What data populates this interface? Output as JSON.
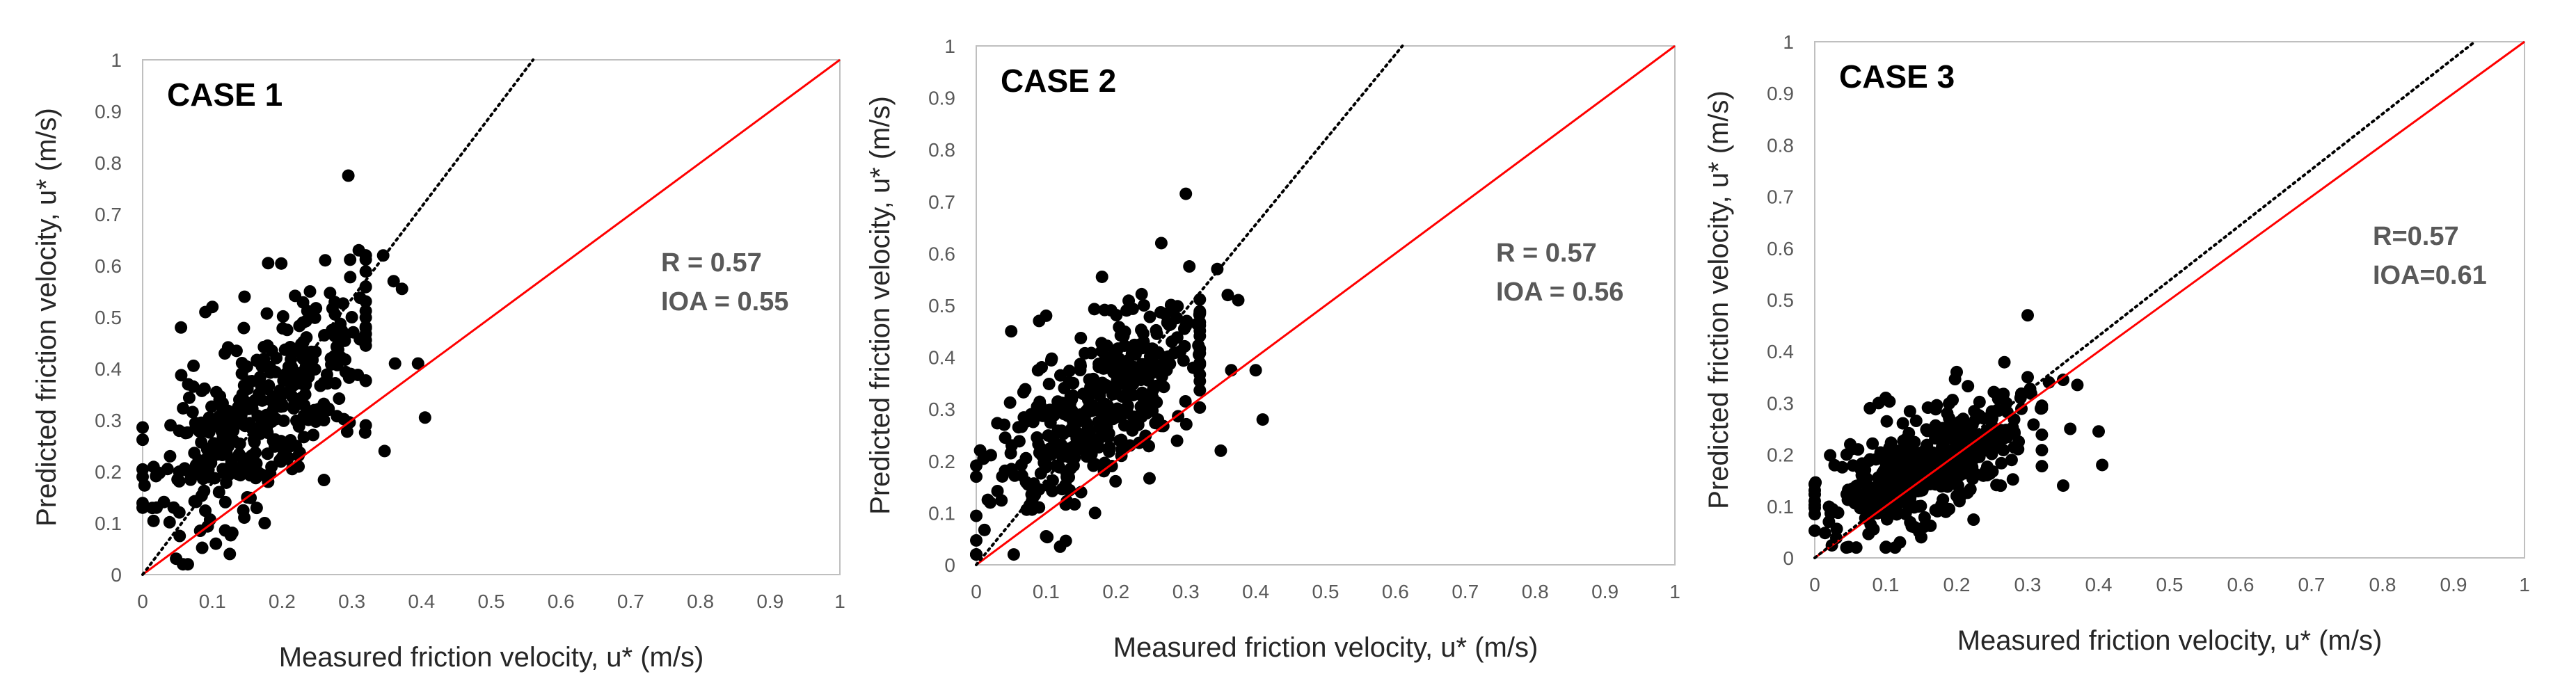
{
  "figure": {
    "background": "#ffffff",
    "point_color": "#000000",
    "one_to_one_color": "#ff0000",
    "regression_color": "#000000"
  },
  "chart_data": [
    {
      "type": "scatter",
      "title": "CASE 1",
      "xlabel": "Measured friction velocity, u* (m/s)",
      "ylabel": "Predicted friction velocity, u* (m/s)",
      "xlim": [
        0,
        1
      ],
      "ylim": [
        0,
        1
      ],
      "xticks": [
        "0",
        "0.1",
        "0.2",
        "0.3",
        "0.4",
        "0.5",
        "0.6",
        "0.7",
        "0.8",
        "0.9",
        "1"
      ],
      "yticks": [
        "0",
        "0.1",
        "0.2",
        "0.3",
        "0.4",
        "0.5",
        "0.6",
        "0.7",
        "0.8",
        "0.9",
        "1"
      ],
      "stats": [
        "R = 0.57",
        "IOA = 0.55"
      ],
      "one_to_one_line": [
        [
          0,
          0
        ],
        [
          1,
          1
        ]
      ],
      "regression_line": [
        [
          0,
          0
        ],
        [
          0.56,
          1.0
        ]
      ],
      "cluster": {
        "cx": 0.17,
        "cy": 0.31,
        "sx": 0.075,
        "slope": 1.0,
        "sres": 0.085,
        "n": 380,
        "seed": 11
      },
      "points": [
        [
          0.295,
          0.775
        ],
        [
          0.31,
          0.63
        ],
        [
          0.345,
          0.62
        ],
        [
          0.36,
          0.57
        ],
        [
          0.372,
          0.555
        ],
        [
          0.362,
          0.41
        ],
        [
          0.395,
          0.41
        ],
        [
          0.405,
          0.305
        ],
        [
          0.347,
          0.24
        ],
        [
          0.18,
          0.605
        ],
        [
          0.175,
          0.1
        ],
        [
          0.1,
          0.52
        ],
        [
          0.09,
          0.51
        ],
        [
          0.055,
          0.48
        ],
        [
          0.125,
          0.04
        ],
        [
          0.105,
          0.06
        ],
        [
          0.0,
          0.19
        ],
        [
          0.02,
          0.13
        ],
        [
          0.04,
          0.29
        ],
        [
          0.3,
          0.5
        ],
        [
          0.28,
          0.46
        ],
        [
          0.27,
          0.42
        ],
        [
          0.24,
          0.55
        ],
        [
          0.26,
          0.3
        ],
        [
          0.22,
          0.25
        ],
        [
          0.15,
          0.15
        ],
        [
          0.2,
          0.35
        ]
      ]
    },
    {
      "type": "scatter",
      "title": "CASE 2",
      "xlabel": "Measured friction velocity, u* (m/s)",
      "ylabel": "Predicted friction velocity, u* (m/s)",
      "xlim": [
        0,
        1
      ],
      "ylim": [
        0,
        1
      ],
      "xticks": [
        "0",
        "0.1",
        "0.2",
        "0.3",
        "0.4",
        "0.5",
        "0.6",
        "0.7",
        "0.8",
        "0.9",
        "1"
      ],
      "yticks": [
        "0",
        "0.1",
        "0.2",
        "0.3",
        "0.4",
        "0.5",
        "0.6",
        "0.7",
        "0.8",
        "0.9",
        "1"
      ],
      "stats": [
        "R = 0.57",
        "IOA = 0.56"
      ],
      "one_to_one_line": [
        [
          0,
          0
        ],
        [
          1,
          1
        ]
      ],
      "regression_line": [
        [
          0,
          0
        ],
        [
          0.61,
          1.0
        ]
      ],
      "cluster": {
        "cx": 0.17,
        "cy": 0.29,
        "sx": 0.075,
        "slope": 0.95,
        "sres": 0.08,
        "n": 380,
        "seed": 23
      },
      "points": [
        [
          0.3,
          0.715
        ],
        [
          0.305,
          0.575
        ],
        [
          0.345,
          0.57
        ],
        [
          0.36,
          0.52
        ],
        [
          0.375,
          0.51
        ],
        [
          0.365,
          0.375
        ],
        [
          0.4,
          0.375
        ],
        [
          0.41,
          0.28
        ],
        [
          0.35,
          0.22
        ],
        [
          0.18,
          0.555
        ],
        [
          0.17,
          0.1
        ],
        [
          0.1,
          0.48
        ],
        [
          0.09,
          0.47
        ],
        [
          0.05,
          0.45
        ],
        [
          0.12,
          0.035
        ],
        [
          0.1,
          0.055
        ],
        [
          0.0,
          0.17
        ],
        [
          0.02,
          0.12
        ],
        [
          0.04,
          0.27
        ],
        [
          0.3,
          0.46
        ],
        [
          0.28,
          0.43
        ],
        [
          0.27,
          0.4
        ],
        [
          0.24,
          0.5
        ],
        [
          0.26,
          0.28
        ],
        [
          0.22,
          0.23
        ],
        [
          0.15,
          0.14
        ],
        [
          0.2,
          0.33
        ]
      ]
    },
    {
      "type": "scatter",
      "title": "CASE 3",
      "xlabel": "Measured friction velocity, u* (m/s)",
      "ylabel": "Predicted friction velocity, u* (m/s)",
      "xlim": [
        0,
        1
      ],
      "ylim": [
        0,
        1
      ],
      "xticks": [
        "0",
        "0.1",
        "0.2",
        "0.3",
        "0.4",
        "0.5",
        "0.6",
        "0.7",
        "0.8",
        "0.9",
        "1"
      ],
      "yticks": [
        "0",
        "0.1",
        "0.2",
        "0.3",
        "0.4",
        "0.5",
        "0.6",
        "0.7",
        "0.8",
        "0.9",
        "1"
      ],
      "stats": [
        "R=0.57",
        "IOA=0.61"
      ],
      "one_to_one_line": [
        [
          0,
          0
        ],
        [
          1,
          1
        ]
      ],
      "regression_line": [
        [
          0,
          0
        ],
        [
          0.93,
          1.0
        ]
      ],
      "cluster": {
        "cx": 0.16,
        "cy": 0.18,
        "sx": 0.07,
        "slope": 0.55,
        "sres": 0.05,
        "n": 440,
        "seed": 37
      },
      "points": [
        [
          0.3,
          0.47
        ],
        [
          0.33,
          0.34
        ],
        [
          0.35,
          0.345
        ],
        [
          0.37,
          0.335
        ],
        [
          0.36,
          0.25
        ],
        [
          0.4,
          0.245
        ],
        [
          0.405,
          0.18
        ],
        [
          0.35,
          0.14
        ],
        [
          0.29,
          0.31
        ],
        [
          0.3,
          0.35
        ],
        [
          0.1,
          0.31
        ],
        [
          0.09,
          0.3
        ],
        [
          0.05,
          0.22
        ],
        [
          0.0,
          0.11
        ],
        [
          0.02,
          0.07
        ],
        [
          0.12,
          0.03
        ],
        [
          0.1,
          0.02
        ],
        [
          0.15,
          0.04
        ],
        [
          0.2,
          0.36
        ],
        [
          0.25,
          0.27
        ],
        [
          0.27,
          0.3
        ],
        [
          0.2,
          0.12
        ],
        [
          0.22,
          0.2
        ],
        [
          0.18,
          0.1
        ]
      ]
    }
  ]
}
